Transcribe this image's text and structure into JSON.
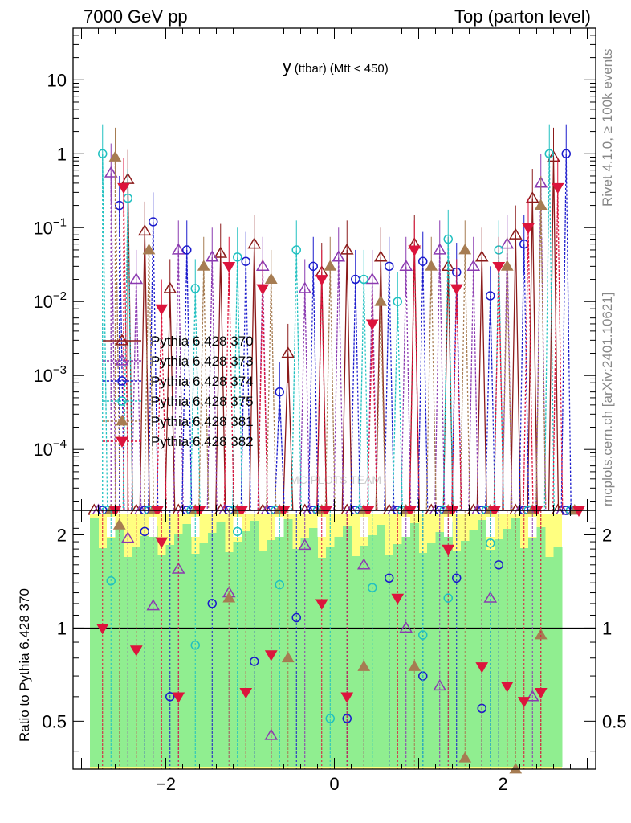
{
  "header": {
    "left": "7000 GeV pp",
    "right": "Top (parton level)"
  },
  "side_labels": {
    "top": "Rivet 4.1.0, ≥ 100k events",
    "bottom": "mcplots.cern.ch [arXiv:2401.10621]"
  },
  "watermark": "MC PLOTS TEAM",
  "chart_data": [
    {
      "type": "line",
      "panel": "main",
      "title_main": "y",
      "title_small": "(ttbar)",
      "title_rest": "(Mtt < 450)",
      "xlabel": "",
      "ylabel": "",
      "xlim": [
        -3.1,
        3.1
      ],
      "ylim": [
        1.5e-05,
        50
      ],
      "yscale": "log",
      "x_ticks": [
        {
          "value": -2,
          "label": "−2"
        },
        {
          "value": 0,
          "label": "0"
        },
        {
          "value": 2,
          "label": "2"
        }
      ],
      "y_ticks": [
        {
          "value": 0.0001,
          "base": "10",
          "exp": "−4"
        },
        {
          "value": 0.001,
          "base": "10",
          "exp": "−3"
        },
        {
          "value": 0.01,
          "base": "10",
          "exp": "−2"
        },
        {
          "value": 0.1,
          "base": "10",
          "exp": "−1"
        },
        {
          "value": 1,
          "base": "1",
          "exp": ""
        },
        {
          "value": 10,
          "base": "10",
          "exp": ""
        }
      ],
      "series": [
        {
          "name": "Pythia 6.428 370",
          "color": "#8b1a1a",
          "marker": "triangle-open",
          "points": [
            [
              -2.45,
              0.45
            ],
            [
              -2.25,
              0.09
            ],
            [
              -1.95,
              0.015
            ],
            [
              -1.35,
              0.045
            ],
            [
              -0.95,
              0.06
            ],
            [
              -0.55,
              0.002
            ],
            [
              -0.15,
              0.025
            ],
            [
              0.15,
              0.05
            ],
            [
              0.55,
              0.04
            ],
            [
              0.95,
              0.06
            ],
            [
              1.35,
              0.03
            ],
            [
              1.75,
              0.04
            ],
            [
              2.15,
              0.08
            ],
            [
              2.35,
              0.25
            ],
            [
              2.6,
              0.9
            ]
          ]
        },
        {
          "name": "Pythia 6.428 373",
          "color": "#8b3ab0",
          "marker": "triangle-open",
          "points": [
            [
              -2.65,
              0.55
            ],
            [
              -2.35,
              0.02
            ],
            [
              -1.85,
              0.05
            ],
            [
              -1.45,
              0.04
            ],
            [
              -0.85,
              0.03
            ],
            [
              -0.35,
              0.015
            ],
            [
              0.05,
              0.04
            ],
            [
              0.45,
              0.02
            ],
            [
              0.85,
              0.03
            ],
            [
              1.25,
              0.05
            ],
            [
              1.65,
              0.03
            ],
            [
              2.05,
              0.06
            ],
            [
              2.45,
              0.4
            ]
          ]
        },
        {
          "name": "Pythia 6.428 374",
          "color": "#1a1acc",
          "marker": "circle-open",
          "points": [
            [
              -2.55,
              0.2
            ],
            [
              -2.15,
              0.12
            ],
            [
              -1.75,
              0.05
            ],
            [
              -1.05,
              0.035
            ],
            [
              -0.65,
              0.0006
            ],
            [
              -0.25,
              0.03
            ],
            [
              0.25,
              0.02
            ],
            [
              0.65,
              0.03
            ],
            [
              1.05,
              0.035
            ],
            [
              1.45,
              0.025
            ],
            [
              1.85,
              0.012
            ],
            [
              2.25,
              0.06
            ],
            [
              2.75,
              1.0
            ]
          ]
        },
        {
          "name": "Pythia 6.428 375",
          "color": "#20c0c0",
          "marker": "circle-open",
          "points": [
            [
              -2.75,
              1.0
            ],
            [
              -2.45,
              0.25
            ],
            [
              -1.65,
              0.015
            ],
            [
              -1.15,
              0.04
            ],
            [
              -0.45,
              0.05
            ],
            [
              0.35,
              0.02
            ],
            [
              0.75,
              0.01
            ],
            [
              1.35,
              0.07
            ],
            [
              1.95,
              0.05
            ],
            [
              2.55,
              1.0
            ]
          ]
        },
        {
          "name": "Pythia 6.428 381",
          "color": "#a67c52",
          "marker": "triangle-filled",
          "points": [
            [
              -2.6,
              0.9
            ],
            [
              -2.2,
              0.05
            ],
            [
              -1.55,
              0.03
            ],
            [
              -0.75,
              0.02
            ],
            [
              -0.05,
              0.03
            ],
            [
              0.55,
              0.01
            ],
            [
              1.15,
              0.03
            ],
            [
              1.55,
              0.05
            ],
            [
              2.05,
              0.03
            ],
            [
              2.45,
              0.2
            ]
          ]
        },
        {
          "name": "Pythia 6.428 382",
          "color": "#dc143c",
          "marker": "triangle-down-filled",
          "points": [
            [
              -2.5,
              0.35
            ],
            [
              -2.05,
              0.008
            ],
            [
              -1.25,
              0.03
            ],
            [
              -0.85,
              0.015
            ],
            [
              -0.15,
              0.02
            ],
            [
              0.45,
              0.005
            ],
            [
              0.95,
              0.05
            ],
            [
              1.45,
              0.015
            ],
            [
              1.95,
              0.03
            ],
            [
              2.3,
              0.1
            ],
            [
              2.65,
              0.35
            ]
          ]
        }
      ]
    },
    {
      "type": "line",
      "panel": "ratio",
      "ylabel": "Ratio to Pythia 6.428 370",
      "xlim": [
        -3.1,
        3.1
      ],
      "ylim": [
        0.35,
        2.4
      ],
      "yscale": "log",
      "reference_line": 1,
      "x_ticks": [
        {
          "value": -2,
          "label": "−2"
        },
        {
          "value": 0,
          "label": "0"
        },
        {
          "value": 2,
          "label": "2"
        }
      ],
      "y_ticks": [
        {
          "value": 0.5,
          "label": "0.5"
        },
        {
          "value": 1,
          "label": "1"
        },
        {
          "value": 2,
          "label": "2"
        }
      ],
      "band_x_range": [
        -2.9,
        2.7
      ],
      "series": [
        {
          "name": "Pythia 6.428 373",
          "color": "#8b3ab0",
          "marker": "triangle-open",
          "points": [
            [
              -2.45,
              1.95
            ],
            [
              -2.15,
              1.18
            ],
            [
              -1.85,
              1.55
            ],
            [
              -1.25,
              1.3
            ],
            [
              -0.75,
              0.45
            ],
            [
              -0.35,
              1.85
            ],
            [
              0.35,
              1.6
            ],
            [
              0.85,
              1.0
            ],
            [
              1.25,
              0.65
            ],
            [
              1.85,
              1.25
            ],
            [
              2.35,
              0.6
            ]
          ]
        },
        {
          "name": "Pythia 6.428 374",
          "color": "#1a1acc",
          "marker": "circle-open",
          "points": [
            [
              -2.25,
              2.05
            ],
            [
              -1.95,
              0.6
            ],
            [
              -1.45,
              1.2
            ],
            [
              -0.95,
              0.78
            ],
            [
              -0.45,
              1.08
            ],
            [
              0.15,
              0.51
            ],
            [
              0.65,
              1.45
            ],
            [
              1.05,
              0.7
            ],
            [
              1.45,
              1.45
            ],
            [
              1.75,
              0.55
            ],
            [
              1.95,
              1.6
            ]
          ]
        },
        {
          "name": "Pythia 6.428 375",
          "color": "#20c0c0",
          "marker": "circle-open",
          "points": [
            [
              -2.65,
              1.42
            ],
            [
              -1.65,
              0.88
            ],
            [
              -1.15,
              2.05
            ],
            [
              -0.65,
              1.38
            ],
            [
              -0.05,
              0.51
            ],
            [
              0.45,
              1.35
            ],
            [
              1.05,
              0.95
            ],
            [
              1.35,
              1.25
            ],
            [
              1.85,
              1.88
            ]
          ]
        },
        {
          "name": "Pythia 6.428 381",
          "color": "#a67c52",
          "marker": "triangle-filled",
          "points": [
            [
              -2.55,
              2.15
            ],
            [
              -1.25,
              1.25
            ],
            [
              -0.55,
              0.8
            ],
            [
              0.35,
              0.75
            ],
            [
              0.95,
              0.75
            ],
            [
              1.55,
              0.38
            ],
            [
              2.15,
              0.35
            ],
            [
              2.45,
              0.95
            ]
          ]
        },
        {
          "name": "Pythia 6.428 382",
          "color": "#dc143c",
          "marker": "triangle-down-filled",
          "points": [
            [
              -2.75,
              1.0
            ],
            [
              -2.35,
              0.85
            ],
            [
              -2.05,
              1.9
            ],
            [
              -1.85,
              0.6
            ],
            [
              -1.05,
              0.62
            ],
            [
              -0.75,
              0.82
            ],
            [
              -0.15,
              1.2
            ],
            [
              0.15,
              0.6
            ],
            [
              0.75,
              1.25
            ],
            [
              1.35,
              1.8
            ],
            [
              1.75,
              0.75
            ],
            [
              2.05,
              0.65
            ],
            [
              2.25,
              0.58
            ],
            [
              2.45,
              0.62
            ]
          ]
        }
      ]
    }
  ]
}
